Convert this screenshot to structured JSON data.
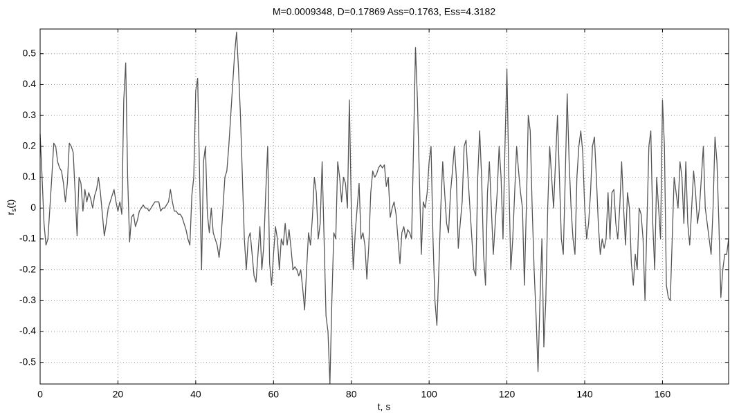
{
  "chart_data": {
    "type": "line",
    "title": "M=0.0009348, D=0.17869 Ass=0.1763, Ess=4.3182",
    "xlabel": "t, s",
    "ylabel": {
      "text": "r",
      "subscript": "s",
      "suffix": "(t)"
    },
    "xlim": [
      0,
      177
    ],
    "ylim": [
      -0.57,
      0.58
    ],
    "xticks": [
      0,
      20,
      40,
      60,
      80,
      100,
      120,
      140,
      160
    ],
    "yticks": [
      -0.5,
      -0.4,
      -0.3,
      -0.2,
      -0.1,
      0,
      0.1,
      0.2,
      0.3,
      0.4,
      0.5
    ],
    "grid": true,
    "x": [
      0,
      0.5,
      1,
      1.5,
      2,
      2.5,
      3,
      3.5,
      4,
      4.5,
      5,
      5.5,
      6,
      6.5,
      7,
      7.5,
      8,
      8.5,
      9,
      9.5,
      10,
      10.5,
      11,
      11.5,
      12,
      12.5,
      13,
      13.5,
      14,
      14.5,
      15,
      15.5,
      16,
      16.5,
      17,
      17.5,
      18,
      18.5,
      19,
      19.5,
      20,
      20.5,
      21,
      21.5,
      22,
      22.5,
      23,
      23.5,
      24,
      24.5,
      25,
      25.5,
      26,
      26.5,
      27,
      27.5,
      28,
      28.5,
      29,
      29.5,
      30,
      30.5,
      31,
      31.5,
      32,
      32.5,
      33,
      33.5,
      34,
      34.5,
      35,
      35.5,
      36,
      36.5,
      37,
      37.5,
      38,
      38.5,
      39,
      39.5,
      40,
      40.5,
      41,
      41.5,
      42,
      42.5,
      43,
      43.5,
      44,
      44.5,
      45,
      45.5,
      46,
      46.5,
      47,
      47.5,
      48,
      48.5,
      49,
      49.5,
      50,
      50.5,
      51,
      51.5,
      52,
      52.5,
      53,
      53.5,
      54,
      54.5,
      55,
      55.5,
      56,
      56.5,
      57,
      57.5,
      58,
      58.5,
      59,
      59.5,
      60,
      60.5,
      61,
      61.5,
      62,
      62.5,
      63,
      63.5,
      64,
      64.5,
      65,
      65.5,
      66,
      66.5,
      67,
      67.5,
      68,
      68.5,
      69,
      69.5,
      70,
      70.5,
      71,
      71.5,
      72,
      72.5,
      73,
      73.5,
      74,
      74.5,
      75,
      75.5,
      76,
      76.5,
      77,
      77.5,
      78,
      78.5,
      79,
      79.5,
      80,
      80.5,
      81,
      81.5,
      82,
      82.5,
      83,
      83.5,
      84,
      84.5,
      85,
      85.5,
      86,
      86.5,
      87,
      87.5,
      88,
      88.5,
      89,
      89.5,
      90,
      90.5,
      91,
      91.5,
      92,
      92.5,
      93,
      93.5,
      94,
      94.5,
      95,
      95.5,
      96,
      96.5,
      97,
      97.5,
      98,
      98.5,
      99,
      99.5,
      100,
      100.5,
      101,
      101.5,
      102,
      102.5,
      103,
      103.5,
      104,
      104.5,
      105,
      105.5,
      106,
      106.5,
      107,
      107.5,
      108,
      108.5,
      109,
      109.5,
      110,
      110.5,
      111,
      111.5,
      112,
      112.5,
      113,
      113.5,
      114,
      114.5,
      115,
      115.5,
      116,
      116.5,
      117,
      117.5,
      118,
      118.5,
      119,
      119.5,
      120,
      120.5,
      121,
      121.5,
      122,
      122.5,
      123,
      123.5,
      124,
      124.5,
      125,
      125.5,
      126,
      126.5,
      127,
      127.5,
      128,
      128.5,
      129,
      129.5,
      130,
      130.5,
      131,
      131.5,
      132,
      132.5,
      133,
      133.5,
      134,
      134.5,
      135,
      135.5,
      136,
      136.5,
      137,
      137.5,
      138,
      138.5,
      139,
      139.5,
      140,
      140.5,
      141,
      141.5,
      142,
      142.5,
      143,
      143.5,
      144,
      144.5,
      145,
      145.5,
      146,
      146.5,
      147,
      147.5,
      148,
      148.5,
      149,
      149.5,
      150,
      150.5,
      151,
      151.5,
      152,
      152.5,
      153,
      153.5,
      154,
      154.5,
      155,
      155.5,
      156,
      156.5,
      157,
      157.5,
      158,
      158.5,
      159,
      159.5,
      160,
      160.5,
      161,
      161.5,
      162,
      162.5,
      163,
      163.5,
      164,
      164.5,
      165,
      165.5,
      166,
      166.5,
      167,
      167.5,
      168,
      168.5,
      169,
      169.5,
      170,
      170.5,
      171,
      171.5,
      172,
      172.5,
      173,
      173.5,
      174,
      174.5,
      175,
      175.5,
      176,
      176.5,
      177
    ],
    "series": [
      {
        "color": "#555555",
        "values": [
          0.24,
          0.1,
          -0.05,
          -0.12,
          -0.1,
          0.0,
          0.1,
          0.21,
          0.2,
          0.15,
          0.13,
          0.12,
          0.08,
          0.02,
          0.08,
          0.21,
          0.2,
          0.18,
          0.05,
          -0.09,
          0.1,
          0.08,
          -0.01,
          0.06,
          0.02,
          0.05,
          0.03,
          0.0,
          0.04,
          0.06,
          0.1,
          0.05,
          -0.02,
          -0.09,
          -0.05,
          0.0,
          0.02,
          0.04,
          0.06,
          0.02,
          -0.01,
          0.02,
          -0.02,
          0.35,
          0.47,
          0.1,
          -0.11,
          -0.03,
          -0.02,
          -0.06,
          -0.04,
          -0.01,
          0.0,
          0.01,
          0.0,
          0.0,
          -0.01,
          0.0,
          0.01,
          0.02,
          0.02,
          0.02,
          -0.01,
          0.0,
          0.0,
          0.01,
          0.02,
          0.06,
          0.02,
          -0.01,
          -0.01,
          -0.02,
          -0.02,
          -0.03,
          -0.05,
          -0.07,
          -0.1,
          -0.12,
          0.04,
          0.1,
          0.38,
          0.42,
          0.1,
          -0.2,
          0.15,
          0.2,
          -0.02,
          -0.08,
          0.0,
          -0.08,
          -0.1,
          -0.12,
          -0.16,
          -0.1,
          0.0,
          0.1,
          0.12,
          0.2,
          0.3,
          0.4,
          0.5,
          0.57,
          0.45,
          0.3,
          0.1,
          -0.1,
          -0.2,
          -0.1,
          -0.08,
          -0.15,
          -0.22,
          -0.24,
          -0.15,
          -0.06,
          -0.2,
          -0.12,
          0.05,
          0.2,
          -0.18,
          -0.25,
          -0.15,
          -0.06,
          -0.1,
          -0.2,
          -0.1,
          -0.12,
          -0.05,
          -0.12,
          -0.07,
          -0.13,
          -0.2,
          -0.19,
          -0.2,
          -0.22,
          -0.2,
          -0.26,
          -0.33,
          -0.2,
          -0.08,
          -0.12,
          -0.03,
          0.1,
          0.05,
          -0.1,
          -0.05,
          0.15,
          -0.1,
          -0.35,
          -0.4,
          -0.57,
          -0.3,
          -0.08,
          -0.1,
          0.15,
          0.1,
          0.02,
          0.1,
          0.08,
          0.0,
          0.35,
          0.0,
          -0.2,
          -0.08,
          0.0,
          0.08,
          -0.1,
          -0.08,
          -0.12,
          -0.23,
          -0.12,
          0.05,
          0.12,
          0.1,
          0.11,
          0.13,
          0.14,
          0.13,
          0.14,
          0.07,
          0.1,
          -0.03,
          0.0,
          0.02,
          -0.02,
          -0.1,
          -0.18,
          -0.08,
          -0.06,
          -0.1,
          -0.07,
          -0.08,
          -0.1,
          0.2,
          0.52,
          0.35,
          0.1,
          -0.15,
          0.02,
          0.0,
          0.05,
          0.15,
          0.2,
          -0.1,
          -0.3,
          -0.38,
          -0.2,
          0.0,
          0.15,
          0.05,
          -0.05,
          -0.08,
          0.05,
          0.12,
          0.2,
          0.1,
          -0.13,
          -0.05,
          0.02,
          0.2,
          0.22,
          0.1,
          0.0,
          -0.1,
          -0.2,
          -0.22,
          0.1,
          0.25,
          0.1,
          -0.15,
          -0.25,
          0.05,
          0.15,
          0.0,
          -0.15,
          -0.05,
          0.05,
          0.2,
          0.1,
          -0.1,
          0.2,
          0.45,
          0.1,
          -0.2,
          -0.1,
          0.05,
          0.2,
          0.12,
          0.05,
          0.0,
          -0.25,
          0.0,
          0.3,
          0.25,
          0.0,
          -0.2,
          -0.35,
          -0.53,
          -0.3,
          -0.1,
          -0.45,
          -0.3,
          0.0,
          0.2,
          0.1,
          0.0,
          0.15,
          0.3,
          0.1,
          -0.1,
          -0.15,
          0.1,
          0.37,
          0.15,
          0.0,
          -0.1,
          -0.15,
          0.1,
          0.2,
          0.25,
          0.18,
          0.0,
          -0.1,
          -0.05,
          0.05,
          0.2,
          0.23,
          0.1,
          -0.05,
          -0.15,
          -0.1,
          -0.13,
          -0.1,
          0.05,
          -0.1,
          0.05,
          0.06,
          -0.05,
          -0.1,
          0.0,
          0.15,
          0.0,
          -0.12,
          0.05,
          0.0,
          -0.18,
          -0.25,
          -0.15,
          -0.2,
          0.0,
          -0.02,
          -0.1,
          -0.3,
          -0.05,
          0.2,
          0.25,
          -0.05,
          -0.2,
          0.1,
          0.0,
          -0.1,
          0.35,
          0.2,
          -0.25,
          -0.29,
          -0.3,
          -0.1,
          0.1,
          0.05,
          0.0,
          0.15,
          0.1,
          -0.05,
          0.15,
          -0.05,
          -0.12,
          0.0,
          0.12,
          0.05,
          -0.05,
          0.0,
          0.1,
          0.2,
          0.0,
          -0.05,
          -0.1,
          -0.15,
          0.0,
          0.23,
          0.15,
          -0.05,
          -0.29,
          -0.2,
          -0.15,
          -0.15,
          -0.1
        ]
      }
    ]
  }
}
